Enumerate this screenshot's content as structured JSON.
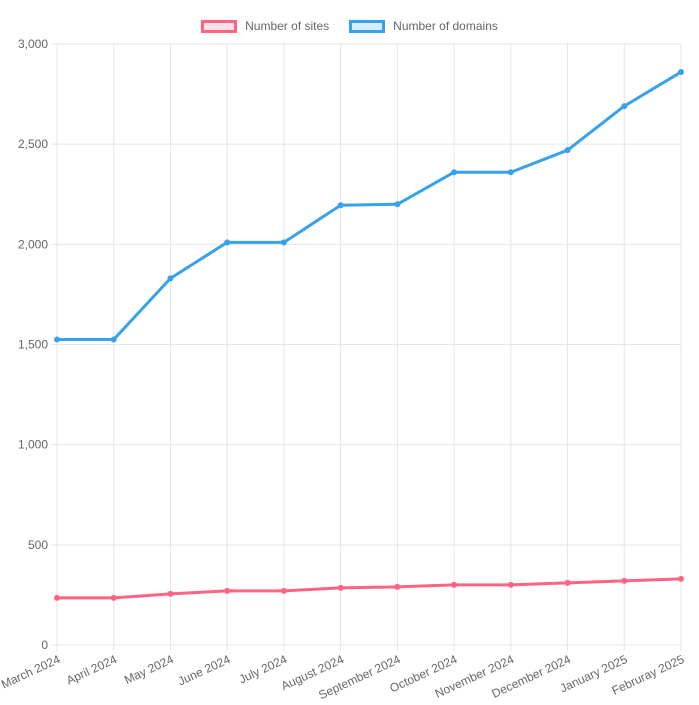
{
  "legend": {
    "items": [
      {
        "label": "Number of sites",
        "color": "#ff6384",
        "fill": "#ffe3e9"
      },
      {
        "label": "Number of domains",
        "color": "#36a2eb",
        "fill": "#d9ecfb"
      }
    ]
  },
  "chart_data": {
    "type": "line",
    "categories": [
      "March 2024",
      "April 2024",
      "May 2024",
      "June 2024",
      "July 2024",
      "August 2024",
      "September 2024",
      "October 2024",
      "November 2024",
      "December 2024",
      "January 2025",
      "Februray 2025"
    ],
    "series": [
      {
        "name": "Number of sites",
        "color": "#ff6384",
        "values": [
          235,
          235,
          255,
          270,
          270,
          285,
          290,
          300,
          300,
          310,
          320,
          330
        ]
      },
      {
        "name": "Number of domains",
        "color": "#36a2eb",
        "values": [
          1525,
          1525,
          1830,
          2010,
          2010,
          2195,
          2200,
          2360,
          2360,
          2470,
          2690,
          2860
        ]
      }
    ],
    "title": "",
    "xlabel": "",
    "ylabel": "",
    "ylim": [
      0,
      3000
    ],
    "yticks": [
      0,
      500,
      1000,
      1500,
      2000,
      2500,
      3000
    ],
    "grid": true,
    "grid_color": "#e5e5e5",
    "tick_color": "#666666",
    "legend_position": "top",
    "x_label_rotation": -25,
    "line_width": 3,
    "point_radius": 3
  }
}
